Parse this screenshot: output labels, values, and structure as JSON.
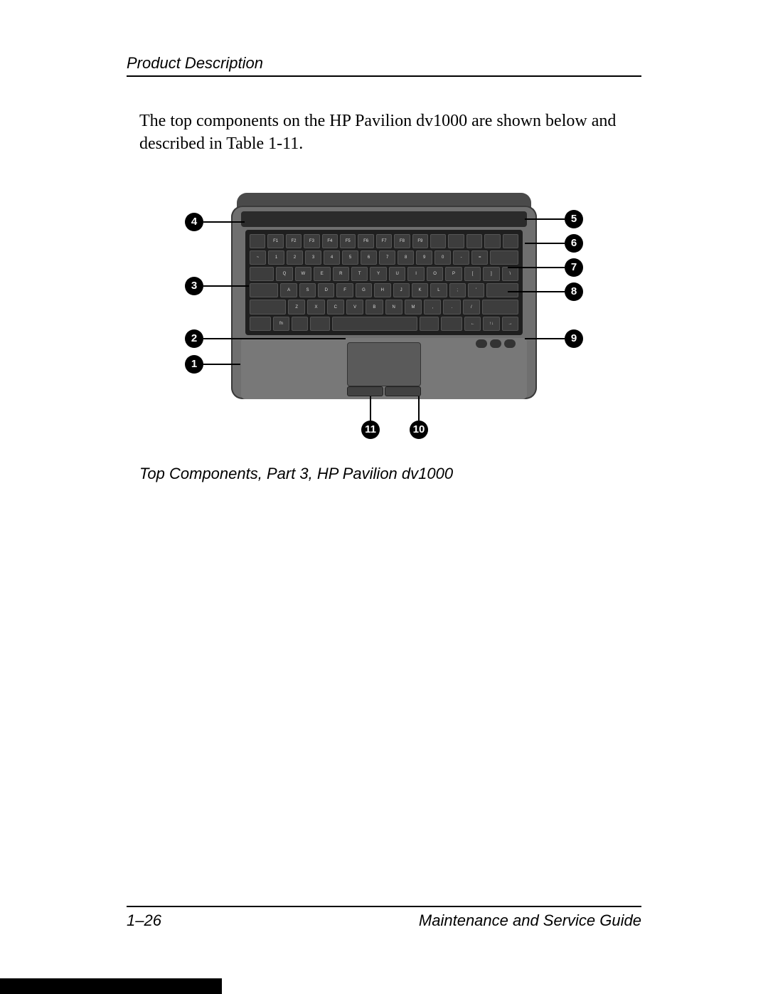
{
  "header": {
    "section_title": "Product Description"
  },
  "body": {
    "paragraph": "The top components on the HP Pavilion dv1000 are shown below and described in Table 1-11."
  },
  "figure": {
    "caption": "Top Components, Part 3, HP Pavilion dv1000",
    "callouts": {
      "left": [
        {
          "n": "4"
        },
        {
          "n": "3"
        },
        {
          "n": "2"
        },
        {
          "n": "1"
        }
      ],
      "right": [
        {
          "n": "5"
        },
        {
          "n": "6"
        },
        {
          "n": "7"
        },
        {
          "n": "8"
        },
        {
          "n": "9"
        }
      ],
      "bottom": [
        {
          "n": "11"
        },
        {
          "n": "10"
        }
      ]
    },
    "keyboard": {
      "rows": [
        [
          "esc",
          "F1",
          "F2",
          "F3",
          "F4",
          "F5",
          "F6",
          "F7",
          "F8",
          "F9",
          "F10",
          "F11",
          "F12",
          "ins",
          "del"
        ],
        [
          "~",
          "1",
          "2",
          "3",
          "4",
          "5",
          "6",
          "7",
          "8",
          "9",
          "0",
          "-",
          "=",
          "bksp"
        ],
        [
          "tab",
          "Q",
          "W",
          "E",
          "R",
          "T",
          "Y",
          "U",
          "I",
          "O",
          "P",
          "[",
          "]",
          "\\"
        ],
        [
          "caps",
          "A",
          "S",
          "D",
          "F",
          "G",
          "H",
          "J",
          "K",
          "L",
          ";",
          "'",
          "enter"
        ],
        [
          "shift",
          "Z",
          "X",
          "C",
          "V",
          "B",
          "N",
          "M",
          ",",
          ".",
          "/",
          "shift"
        ],
        [
          "ctrl",
          "fn",
          "win",
          "alt",
          "space",
          "alt",
          "ctrl",
          "←",
          "↑↓",
          "→"
        ]
      ]
    },
    "colors": {
      "callout_bg": "#000000",
      "callout_fg": "#ffffff",
      "deck": "#6f6f6f",
      "kb_well": "#1f1f1f",
      "key": "#3d3d3d"
    }
  },
  "footer": {
    "page_number": "1–26",
    "book_title": "Maintenance and Service Guide"
  }
}
